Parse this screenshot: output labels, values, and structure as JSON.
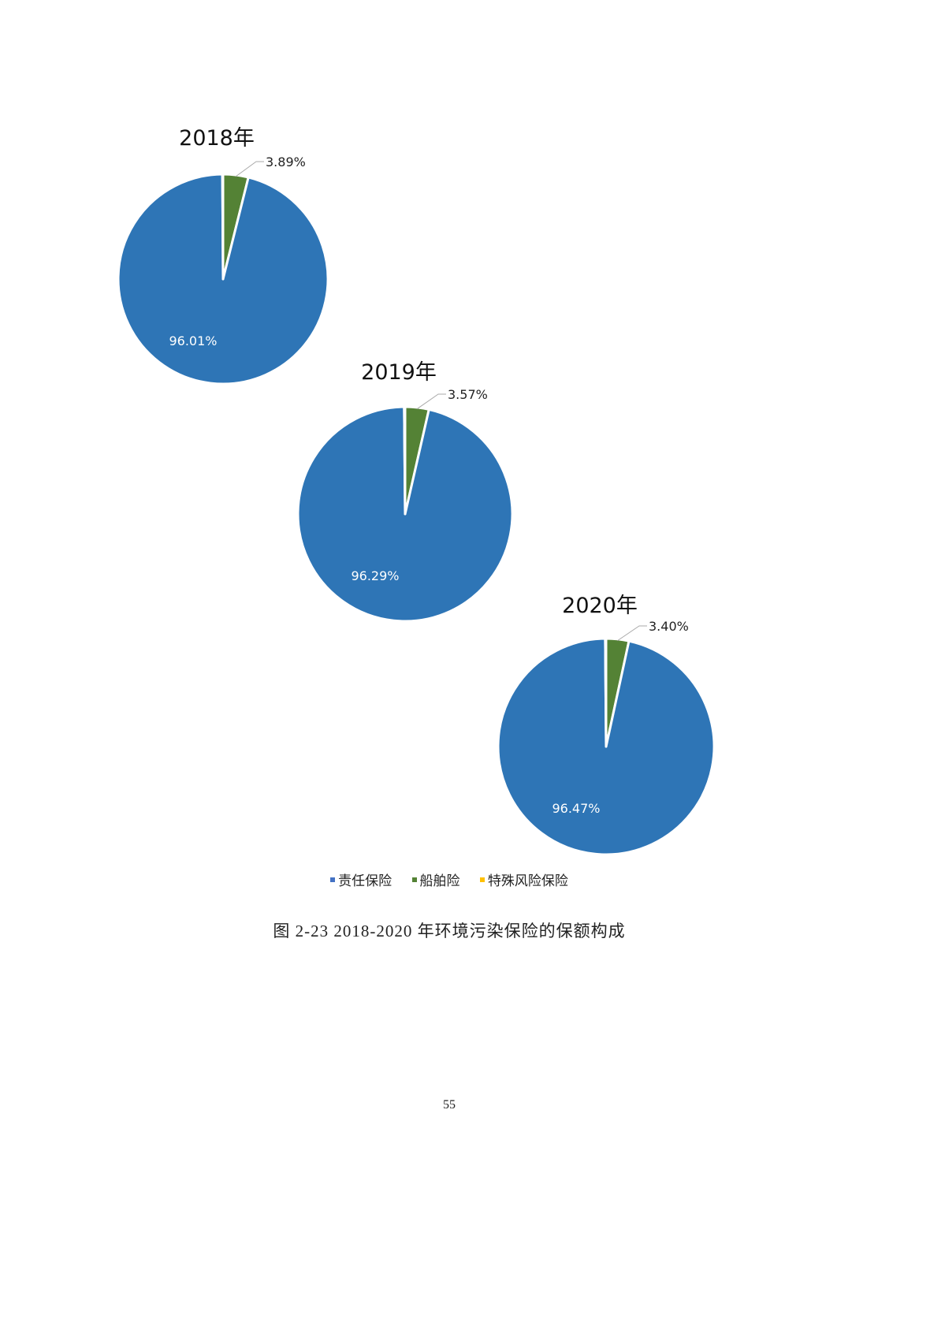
{
  "chart_data": [
    {
      "type": "pie",
      "title": "2018年",
      "categories": [
        "责任保险",
        "船舶险",
        "特殊风险保险"
      ],
      "values": [
        96.01,
        3.89,
        0.1
      ],
      "labels": [
        "96.01%",
        "3.89%",
        ""
      ]
    },
    {
      "type": "pie",
      "title": "2019年",
      "categories": [
        "责任保险",
        "船舶险",
        "特殊风险保险"
      ],
      "values": [
        96.29,
        3.57,
        0.14
      ],
      "labels": [
        "96.29%",
        "3.57%",
        ""
      ]
    },
    {
      "type": "pie",
      "title": "2020年",
      "categories": [
        "责任保险",
        "船舶险",
        "特殊风险保险"
      ],
      "values": [
        96.47,
        3.4,
        0.13
      ],
      "labels": [
        "96.47%",
        "3.40%",
        ""
      ]
    }
  ],
  "colors": {
    "责任保险": "#2e75b6",
    "船舶险": "#548235",
    "特殊风险保险": "#ffc000"
  },
  "legend": {
    "position": "bottom",
    "items": [
      "责任保险",
      "船舶险",
      "特殊风险保险"
    ]
  },
  "caption": "图 2-23   2018-2020 年环境污染保险的保额构成",
  "page_number": "55"
}
